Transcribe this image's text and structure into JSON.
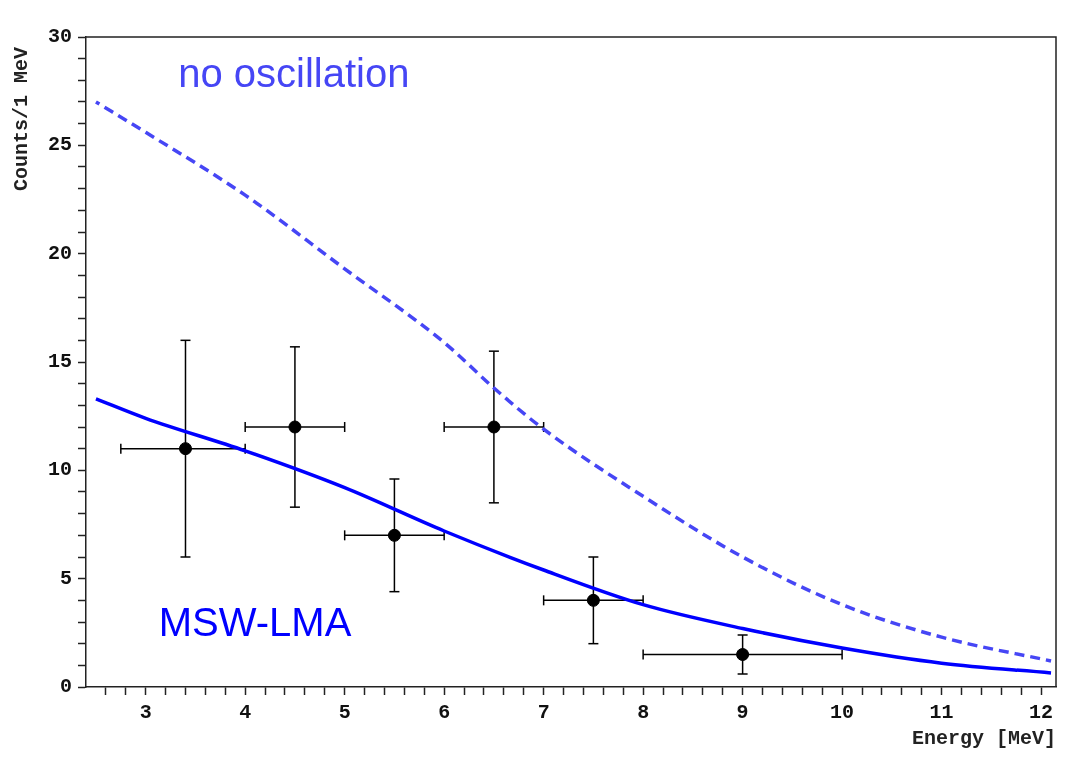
{
  "chart_data": {
    "type": "line",
    "xlabel": "Energy [MeV]",
    "ylabel": "Counts/1 MeV",
    "xlim": [
      2.4,
      12.15
    ],
    "ylim": [
      0,
      30
    ],
    "xticks": [
      {
        "value": 2.6,
        "label": null
      },
      {
        "value": 2.8,
        "label": null
      },
      3,
      {
        "value": 3.2,
        "label": null
      },
      {
        "value": 3.4,
        "label": null
      },
      {
        "value": 3.6,
        "label": null
      },
      {
        "value": 3.8,
        "label": null
      },
      4,
      {
        "value": 4.2,
        "label": null
      },
      {
        "value": 4.4,
        "label": null
      },
      {
        "value": 4.6,
        "label": null
      },
      {
        "value": 4.8,
        "label": null
      },
      5,
      {
        "value": 5.2,
        "label": null
      },
      {
        "value": 5.4,
        "label": null
      },
      {
        "value": 5.6,
        "label": null
      },
      {
        "value": 5.8,
        "label": null
      },
      6,
      {
        "value": 6.2,
        "label": null
      },
      {
        "value": 6.4,
        "label": null
      },
      {
        "value": 6.6,
        "label": null
      },
      {
        "value": 6.8,
        "label": null
      },
      7,
      {
        "value": 7.2,
        "label": null
      },
      {
        "value": 7.4,
        "label": null
      },
      {
        "value": 7.6,
        "label": null
      },
      {
        "value": 7.8,
        "label": null
      },
      8,
      {
        "value": 8.2,
        "label": null
      },
      {
        "value": 8.4,
        "label": null
      },
      {
        "value": 8.6,
        "label": null
      },
      {
        "value": 8.8,
        "label": null
      },
      9,
      {
        "value": 9.2,
        "label": null
      },
      {
        "value": 9.4,
        "label": null
      },
      {
        "value": 9.6,
        "label": null
      },
      {
        "value": 9.8,
        "label": null
      },
      10,
      {
        "value": 10.2,
        "label": null
      },
      {
        "value": 10.4,
        "label": null
      },
      {
        "value": 10.6,
        "label": null
      },
      {
        "value": 10.8,
        "label": null
      },
      11,
      {
        "value": 11.2,
        "label": null
      },
      {
        "value": 11.4,
        "label": null
      },
      {
        "value": 11.6,
        "label": null
      },
      {
        "value": 11.8,
        "label": null
      },
      12
    ],
    "yticks": [
      0,
      {
        "value": 1,
        "label": null
      },
      {
        "value": 2,
        "label": null
      },
      {
        "value": 3,
        "label": null
      },
      {
        "value": 4,
        "label": null
      },
      5,
      {
        "value": 6,
        "label": null
      },
      {
        "value": 7,
        "label": null
      },
      {
        "value": 8,
        "label": null
      },
      {
        "value": 9,
        "label": null
      },
      10,
      {
        "value": 11,
        "label": null
      },
      {
        "value": 12,
        "label": null
      },
      {
        "value": 13,
        "label": null
      },
      {
        "value": 14,
        "label": null
      },
      15,
      {
        "value": 16,
        "label": null
      },
      {
        "value": 17,
        "label": null
      },
      {
        "value": 18,
        "label": null
      },
      {
        "value": 19,
        "label": null
      },
      20,
      {
        "value": 21,
        "label": null
      },
      {
        "value": 22,
        "label": null
      },
      {
        "value": 23,
        "label": null
      },
      {
        "value": 24,
        "label": null
      },
      25,
      {
        "value": 26,
        "label": null
      },
      {
        "value": 27,
        "label": null
      },
      {
        "value": 28,
        "label": null
      },
      {
        "value": 29,
        "label": null
      },
      30
    ],
    "grid": false,
    "legend": false,
    "series": [
      {
        "name": "no oscillation",
        "line_style": "dashed",
        "marker": "none",
        "color": "#4646f5",
        "x": [
          2.5,
          3,
          4,
          5,
          6,
          6.5,
          7,
          8,
          9,
          10,
          11,
          12.1
        ],
        "values": [
          27.0,
          25.6,
          22.7,
          19.3,
          15.9,
          13.8,
          11.9,
          8.8,
          6.0,
          3.8,
          2.3,
          1.2
        ]
      },
      {
        "name": "MSW-LMA",
        "line_style": "solid",
        "marker": "none",
        "color": "#0000ff",
        "x": [
          2.5,
          3,
          4,
          5,
          6,
          7,
          8,
          9,
          10,
          11,
          12.1
        ],
        "values": [
          13.3,
          12.4,
          10.9,
          9.2,
          7.2,
          5.4,
          3.8,
          2.7,
          1.8,
          1.1,
          0.65
        ]
      },
      {
        "type": "scatter",
        "marker": "circle",
        "color": "#000000",
        "x": [
          3.4,
          4.5,
          5.5,
          6.5,
          7.5,
          9
        ],
        "values": [
          11,
          12,
          7,
          12,
          4,
          1.5
        ],
        "errors": [
          [
            6,
            16
          ],
          [
            8.3,
            15.7
          ],
          [
            4.4,
            9.6
          ],
          [
            8.5,
            15.5
          ],
          [
            2,
            6
          ],
          [
            0.6,
            2.4
          ]
        ],
        "xerrors": [
          [
            2.75,
            4
          ],
          [
            4,
            5
          ],
          [
            5,
            6
          ],
          [
            6,
            7
          ],
          [
            7,
            8
          ],
          [
            8,
            10
          ]
        ]
      }
    ]
  }
}
